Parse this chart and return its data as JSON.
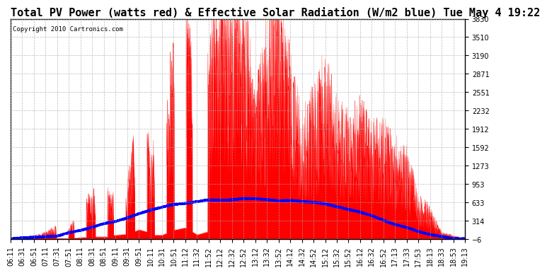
{
  "title": "Total PV Power (watts red) & Effective Solar Radiation (W/m2 blue) Tue May 4 19:22",
  "copyright_text": "Copyright 2010 Cartronics.com",
  "background_color": "#ffffff",
  "plot_bg_color": "#ffffff",
  "grid_color": "#aaaaaa",
  "title_fontsize": 11,
  "tick_fontsize": 7,
  "ylim": [
    -6.0,
    3829.8
  ],
  "yticks": [
    3829.8,
    3510.1,
    3190.5,
    2870.8,
    2551.2,
    2231.5,
    1911.9,
    1592.2,
    1272.6,
    953.0,
    633.3,
    313.7,
    -6.0
  ],
  "x_labels": [
    "06:11",
    "06:31",
    "06:51",
    "07:11",
    "07:31",
    "07:51",
    "08:11",
    "08:31",
    "08:51",
    "09:11",
    "09:31",
    "09:51",
    "10:11",
    "10:31",
    "10:51",
    "11:12",
    "11:32",
    "11:52",
    "12:12",
    "12:32",
    "12:52",
    "13:12",
    "13:32",
    "13:52",
    "14:12",
    "14:32",
    "14:52",
    "15:12",
    "15:32",
    "15:52",
    "16:12",
    "16:32",
    "16:52",
    "17:13",
    "17:33",
    "17:53",
    "18:13",
    "18:33",
    "18:53",
    "19:13"
  ],
  "pv_shape": [
    5,
    20,
    50,
    100,
    200,
    350,
    500,
    700,
    900,
    1100,
    1500,
    2000,
    2500,
    2800,
    3200,
    3400,
    3600,
    3200,
    3800,
    3700,
    3650,
    3200,
    2800,
    3500,
    3100,
    3400,
    3000,
    2800,
    2600,
    2400,
    2200,
    2000,
    1800,
    1600,
    1200,
    800,
    400,
    150,
    50,
    10
  ],
  "solar_shape": [
    0,
    5,
    15,
    30,
    60,
    100,
    150,
    200,
    260,
    310,
    370,
    430,
    490,
    540,
    590,
    630,
    660,
    670,
    680,
    685,
    690,
    685,
    680,
    670,
    660,
    650,
    630,
    600,
    560,
    510,
    460,
    400,
    330,
    260,
    190,
    130,
    80,
    40,
    10,
    2
  ],
  "pv_color": "red",
  "solar_color": "blue",
  "fill_color": "red",
  "fill_alpha": 1.0
}
